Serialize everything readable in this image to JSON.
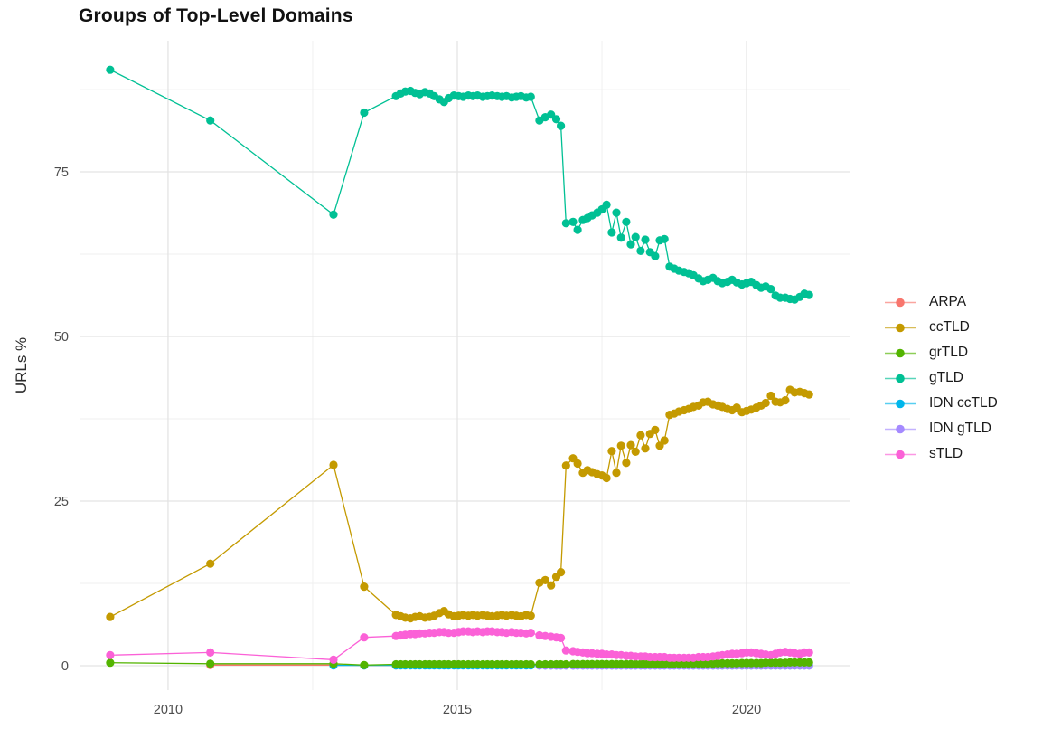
{
  "title": "Groups of Top-Level Domains",
  "chart_data": {
    "type": "line",
    "title": "Groups of Top-Level Domains",
    "xlabel": "",
    "ylabel": "URLs %",
    "grid": true,
    "legend_position": "right",
    "x_range": [
      2008.47,
      2021.78
    ],
    "y_range": [
      -3.71,
      94.92
    ],
    "x_ticks": [
      2010,
      2015,
      2020
    ],
    "x_tick_labels": [
      "2010",
      "2015",
      "2020"
    ],
    "x_minor_ticks": [
      2012.5,
      2017.5
    ],
    "y_ticks": [
      0,
      25,
      50,
      75
    ],
    "y_tick_labels": [
      "0",
      "25",
      "50",
      "75"
    ],
    "y_minor_ticks": [
      12.5,
      37.5,
      62.5,
      87.5
    ],
    "draw_order": [
      "ARPA",
      "IDN ccTLD",
      "IDN gTLD",
      "grTLD",
      "ccTLD",
      "gTLD",
      "sTLD"
    ],
    "x": [
      2009.0,
      2010.73,
      2012.86,
      2013.39,
      2013.94,
      2014.02,
      2014.1,
      2014.19,
      2014.27,
      2014.35,
      2014.44,
      2014.52,
      2014.6,
      2014.69,
      2014.77,
      2014.85,
      2014.94,
      2015.02,
      2015.1,
      2015.19,
      2015.27,
      2015.35,
      2015.44,
      2015.52,
      2015.6,
      2015.69,
      2015.77,
      2015.85,
      2015.94,
      2016.02,
      2016.1,
      2016.19,
      2016.27,
      2016.42,
      2016.52,
      2016.62,
      2016.71,
      2016.79,
      2016.88,
      2017.0,
      2017.08,
      2017.17,
      2017.25,
      2017.33,
      2017.42,
      2017.5,
      2017.58,
      2017.67,
      2017.75,
      2017.83,
      2017.92,
      2018.0,
      2018.08,
      2018.17,
      2018.25,
      2018.33,
      2018.42,
      2018.5,
      2018.58,
      2018.67,
      2018.75,
      2018.83,
      2018.92,
      2019.0,
      2019.08,
      2019.17,
      2019.25,
      2019.33,
      2019.42,
      2019.5,
      2019.58,
      2019.67,
      2019.75,
      2019.83,
      2019.92,
      2020.0,
      2020.08,
      2020.17,
      2020.25,
      2020.33,
      2020.42,
      2020.5,
      2020.58,
      2020.67,
      2020.75,
      2020.83,
      2020.92,
      2021.0,
      2021.08
    ],
    "series": [
      {
        "name": "ARPA",
        "color": "#F8766D",
        "values": [
          null,
          0.1,
          0.1,
          0.05,
          0.05,
          null,
          null,
          null,
          null,
          null,
          null,
          null,
          null,
          null,
          null,
          null,
          null,
          null,
          null,
          null,
          null,
          null,
          null,
          null,
          null,
          null,
          null,
          null,
          null,
          null,
          null,
          null,
          null,
          null,
          null,
          null,
          null,
          null,
          null,
          null,
          null,
          null,
          null,
          null,
          null,
          null,
          null,
          null,
          null,
          null,
          null,
          null,
          null,
          null,
          null,
          null,
          null,
          null,
          null,
          null,
          null,
          null,
          null,
          null,
          null,
          null,
          null,
          null,
          null,
          null,
          null,
          null,
          null,
          null,
          null,
          null,
          null,
          null,
          null,
          null,
          null,
          null,
          null,
          null,
          null,
          null,
          null,
          null,
          null
        ]
      },
      {
        "name": "ccTLD",
        "color": "#C49A00",
        "values": [
          7.4,
          15.5,
          30.5,
          12.0,
          7.7,
          7.5,
          7.3,
          7.2,
          7.4,
          7.5,
          7.3,
          7.4,
          7.6,
          8.0,
          8.3,
          7.8,
          7.5,
          7.6,
          7.7,
          7.6,
          7.7,
          7.6,
          7.7,
          7.6,
          7.5,
          7.6,
          7.7,
          7.6,
          7.7,
          7.6,
          7.5,
          7.7,
          7.6,
          12.6,
          13.0,
          12.2,
          13.5,
          14.2,
          30.4,
          31.5,
          30.7,
          29.3,
          29.7,
          29.4,
          29.1,
          28.9,
          28.5,
          32.6,
          29.3,
          33.4,
          30.8,
          33.5,
          32.5,
          35.0,
          33.0,
          35.2,
          35.8,
          33.4,
          34.2,
          38.1,
          38.3,
          38.6,
          38.8,
          39.0,
          39.3,
          39.5,
          40.0,
          40.1,
          39.7,
          39.5,
          39.3,
          39.0,
          38.8,
          39.2,
          38.5,
          38.7,
          38.9,
          39.2,
          39.5,
          39.9,
          41.0,
          40.1,
          40.0,
          40.3,
          41.9,
          41.5,
          41.6,
          41.4,
          41.2
        ]
      },
      {
        "name": "grTLD",
        "color": "#53B400",
        "values": [
          0.45,
          0.3,
          0.3,
          0.1,
          0.2,
          0.2,
          0.2,
          0.2,
          0.2,
          0.2,
          0.2,
          0.2,
          0.2,
          0.2,
          0.2,
          0.2,
          0.2,
          0.2,
          0.2,
          0.2,
          0.2,
          0.2,
          0.2,
          0.2,
          0.2,
          0.2,
          0.2,
          0.2,
          0.2,
          0.2,
          0.2,
          0.2,
          0.2,
          0.2,
          0.2,
          0.2,
          0.2,
          0.2,
          0.2,
          0.25,
          0.25,
          0.25,
          0.25,
          0.25,
          0.25,
          0.25,
          0.25,
          0.25,
          0.25,
          0.25,
          0.25,
          0.25,
          0.25,
          0.25,
          0.25,
          0.25,
          0.25,
          0.25,
          0.25,
          0.3,
          0.3,
          0.3,
          0.3,
          0.3,
          0.3,
          0.3,
          0.3,
          0.3,
          0.3,
          0.35,
          0.35,
          0.35,
          0.35,
          0.35,
          0.4,
          0.4,
          0.4,
          0.4,
          0.4,
          0.45,
          0.45,
          0.45,
          0.45,
          0.45,
          0.5,
          0.5,
          0.5,
          0.5,
          0.5
        ]
      },
      {
        "name": "gTLD",
        "color": "#00C094",
        "values": [
          90.5,
          82.8,
          68.5,
          84.0,
          86.5,
          86.9,
          87.2,
          87.3,
          87.0,
          86.8,
          87.1,
          86.9,
          86.5,
          86.0,
          85.6,
          86.2,
          86.6,
          86.5,
          86.4,
          86.6,
          86.5,
          86.6,
          86.4,
          86.5,
          86.6,
          86.5,
          86.4,
          86.5,
          86.3,
          86.4,
          86.5,
          86.3,
          86.4,
          82.8,
          83.3,
          83.7,
          83.0,
          82.0,
          67.2,
          67.4,
          66.2,
          67.7,
          68.0,
          68.4,
          68.8,
          69.3,
          70.0,
          65.8,
          68.8,
          65.0,
          67.4,
          64.0,
          65.1,
          63.0,
          64.7,
          62.8,
          62.2,
          64.6,
          64.8,
          60.6,
          60.3,
          60.0,
          59.8,
          59.6,
          59.3,
          58.8,
          58.4,
          58.6,
          58.9,
          58.4,
          58.1,
          58.3,
          58.6,
          58.2,
          57.9,
          58.1,
          58.3,
          57.8,
          57.4,
          57.6,
          57.2,
          56.2,
          55.9,
          55.9,
          55.7,
          55.6,
          56.0,
          56.5,
          56.3
        ]
      },
      {
        "name": "IDN ccTLD",
        "color": "#00B6EB",
        "values": [
          null,
          null,
          0.05,
          0.05,
          0.05,
          0.05,
          0.05,
          0.05,
          0.05,
          0.05,
          0.05,
          0.05,
          0.05,
          0.05,
          0.05,
          0.05,
          0.05,
          0.05,
          0.05,
          0.05,
          0.05,
          0.05,
          0.05,
          0.05,
          0.05,
          0.05,
          0.05,
          0.05,
          0.05,
          0.05,
          0.05,
          0.05,
          0.05,
          0.05,
          0.05,
          0.05,
          0.05,
          0.05,
          0.05,
          0.05,
          0.05,
          0.05,
          0.05,
          0.05,
          0.05,
          0.05,
          0.05,
          0.05,
          0.05,
          0.05,
          0.05,
          0.05,
          0.05,
          0.05,
          0.05,
          0.05,
          0.05,
          0.05,
          0.05,
          0.05,
          0.05,
          0.05,
          0.05,
          0.05,
          0.05,
          0.05,
          0.05,
          0.05,
          0.05,
          0.05,
          0.05,
          0.05,
          0.05,
          0.05,
          0.05,
          0.05,
          0.05,
          0.05,
          0.05,
          0.05,
          0.05,
          0.05,
          0.05,
          0.05,
          0.05,
          0.05,
          0.05,
          0.05,
          0.05
        ]
      },
      {
        "name": "IDN gTLD",
        "color": "#A58AFF",
        "values": [
          null,
          null,
          null,
          null,
          null,
          null,
          null,
          null,
          null,
          null,
          null,
          null,
          null,
          null,
          null,
          null,
          null,
          null,
          null,
          null,
          null,
          null,
          null,
          null,
          null,
          null,
          null,
          null,
          null,
          null,
          null,
          null,
          null,
          0.02,
          0.02,
          0.02,
          0.02,
          0.02,
          0.02,
          0.02,
          0.02,
          0.02,
          0.02,
          0.02,
          0.02,
          0.02,
          0.02,
          0.02,
          0.02,
          0.02,
          0.02,
          0.02,
          0.02,
          0.02,
          0.02,
          0.02,
          0.02,
          0.02,
          0.02,
          0.02,
          0.02,
          0.02,
          0.02,
          0.02,
          0.02,
          0.02,
          0.02,
          0.02,
          0.02,
          0.02,
          0.02,
          0.02,
          0.02,
          0.02,
          0.02,
          0.02,
          0.02,
          0.02,
          0.02,
          0.02,
          0.02,
          0.02,
          0.02,
          0.02,
          0.02,
          0.02,
          0.02,
          0.02,
          0.02
        ]
      },
      {
        "name": "sTLD",
        "color": "#FB61D7",
        "values": [
          1.6,
          2.0,
          0.9,
          4.3,
          4.5,
          4.6,
          4.7,
          4.8,
          4.8,
          4.9,
          4.9,
          5.0,
          5.0,
          5.1,
          5.1,
          5.0,
          5.0,
          5.1,
          5.2,
          5.2,
          5.1,
          5.2,
          5.1,
          5.2,
          5.2,
          5.1,
          5.1,
          5.0,
          5.1,
          5.0,
          5.0,
          4.9,
          5.0,
          4.6,
          4.5,
          4.4,
          4.3,
          4.2,
          2.3,
          2.2,
          2.1,
          2.0,
          1.9,
          1.9,
          1.8,
          1.8,
          1.7,
          1.7,
          1.6,
          1.6,
          1.5,
          1.5,
          1.4,
          1.4,
          1.4,
          1.3,
          1.3,
          1.3,
          1.3,
          1.2,
          1.2,
          1.2,
          1.2,
          1.2,
          1.2,
          1.3,
          1.3,
          1.3,
          1.4,
          1.5,
          1.6,
          1.7,
          1.8,
          1.8,
          1.9,
          2.0,
          2.0,
          1.9,
          1.8,
          1.7,
          1.6,
          1.8,
          2.0,
          2.1,
          2.0,
          1.9,
          1.8,
          2.0,
          2.0
        ]
      }
    ]
  }
}
